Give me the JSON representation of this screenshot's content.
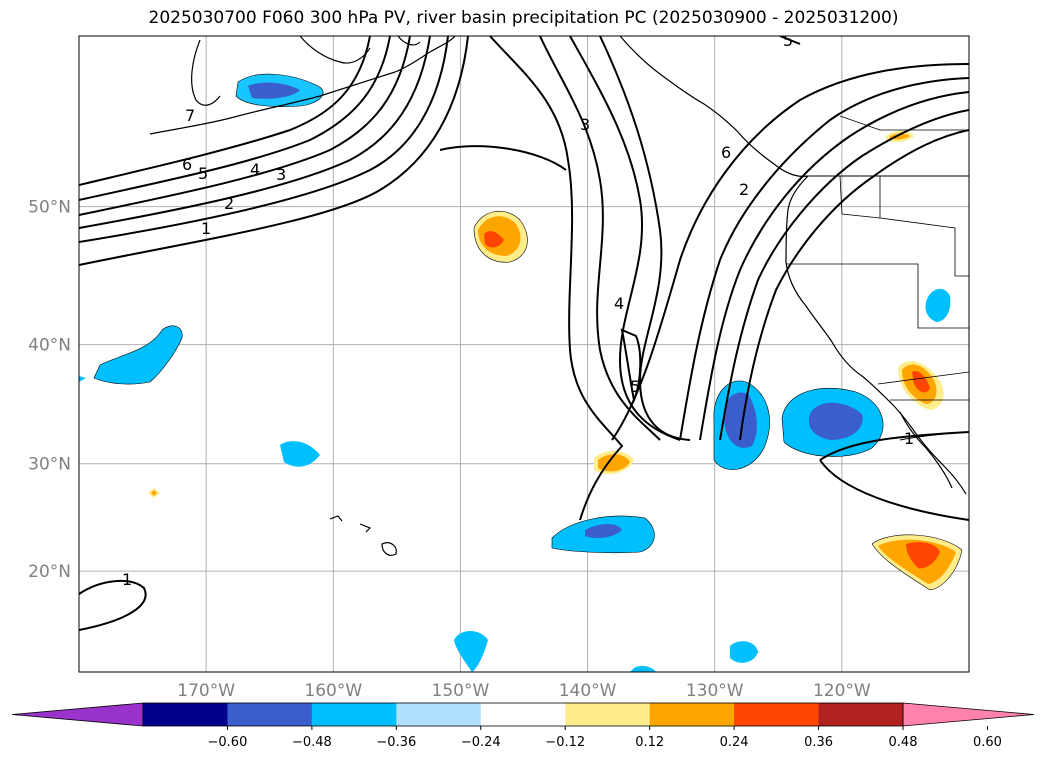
{
  "title": "2025030700 F060 300 hPa PV, river basin precipitation PC (2025030900 - 2025031200)",
  "lat_ticks": [
    {
      "lat": 50,
      "label": "50°N"
    },
    {
      "lat": 40,
      "label": "40°N"
    },
    {
      "lat": 30,
      "label": "30°N"
    },
    {
      "lat": 20,
      "label": "20°N"
    }
  ],
  "lon_ticks": [
    {
      "lon": -170,
      "label": "170°W"
    },
    {
      "lon": -160,
      "label": "160°W"
    },
    {
      "lon": -150,
      "label": "150°W"
    },
    {
      "lon": -140,
      "label": "140°W"
    },
    {
      "lon": -130,
      "label": "130°W"
    },
    {
      "lon": -120,
      "label": "120°W"
    }
  ],
  "extent": {
    "lon_min": -180,
    "lon_max": -110,
    "lat_min": 10,
    "lat_max": 60
  },
  "pv_contour_labels": [
    "7",
    "6",
    "5",
    "4",
    "3",
    "2",
    "1",
    "3",
    "4",
    "5",
    "6",
    "2",
    "1",
    "1",
    "5"
  ],
  "colorbar": {
    "colors": [
      "#9933cc",
      "#00008b",
      "#3a5fcd",
      "#00bfff",
      "#b0e2ff",
      "#ffffff",
      "#ffec8b",
      "#ffa500",
      "#ff4500",
      "#b22222",
      "#ff82ab"
    ],
    "tick_labels": [
      "−0.60",
      "−0.48",
      "−0.36",
      "−0.24",
      "−0.12",
      "0.12",
      "0.24",
      "0.36",
      "0.48",
      "0.60"
    ]
  }
}
